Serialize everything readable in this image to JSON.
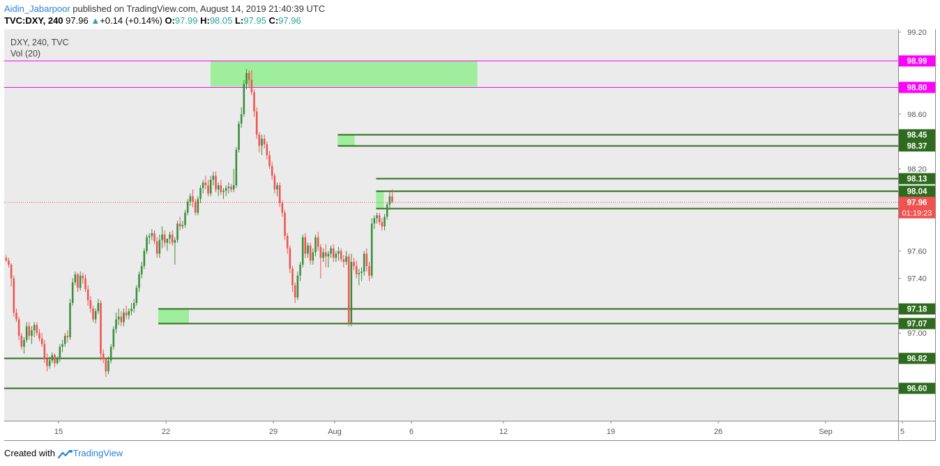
{
  "header": {
    "author": "Aidin_Jabarpoor",
    "published": " published on TradingView.com, August 14, 2019 21:40:39 UTC"
  },
  "ohlc": {
    "symbol": "TVC:DXY, 240",
    "last": "97.96",
    "change": "+0.14 (+0.14%)",
    "o_label": "O:",
    "o": "97.99",
    "h_label": "H:",
    "h": "98.05",
    "l_label": "L:",
    "l": "97.95",
    "c_label": "C:",
    "c": "97.96"
  },
  "legend": {
    "series": "DXY, 240, TVC",
    "vol": "Vol (20)"
  },
  "footer": {
    "created_with": "Created with",
    "brand": "TradingView"
  },
  "colors": {
    "up": "#388e3c",
    "down": "#ef5350",
    "level_line": "#2e6b1e",
    "magenta": "#ff00ff",
    "zone": "#90ee90",
    "plot_bg": "#ebebeb",
    "current": "#ef5350"
  },
  "chart_data": {
    "type": "candlestick",
    "ylim": [
      96.38,
      99.2
    ],
    "y_ticks": [
      "99.20",
      "98.60",
      "98.20",
      "97.60",
      "97.40",
      "97.00",
      "96.60"
    ],
    "x_ticks": [
      "15",
      "22",
      "29",
      "Aug",
      "6",
      "12",
      "19",
      "26",
      "Sep",
      "5"
    ],
    "x_tick_day_index": [
      3,
      10,
      17,
      21,
      26,
      32,
      39,
      46,
      53,
      58
    ],
    "timeframe_minutes": 240,
    "current_price": "97.96",
    "countdown": "01:19:23",
    "magenta_levels": [
      {
        "value": 98.99,
        "label": "98.99"
      },
      {
        "value": 98.8,
        "label": "98.80"
      }
    ],
    "green_levels": [
      {
        "value": 98.45,
        "label": "98.45",
        "start_day": 21.7
      },
      {
        "value": 98.37,
        "label": "98.37",
        "start_day": 21.7
      },
      {
        "value": 98.13,
        "label": "98.13",
        "start_day": 24.2
      },
      {
        "value": 98.04,
        "label": "98.04",
        "start_day": 24.2
      },
      {
        "value": 97.91,
        "label": "97.91",
        "start_day": 24.2
      },
      {
        "value": 97.18,
        "label": "97.18",
        "start_day": 10.0
      },
      {
        "value": 97.07,
        "label": "97.07",
        "start_day": 10.0
      },
      {
        "value": 96.82,
        "label": "96.82",
        "start_day": -1.5
      },
      {
        "value": 96.6,
        "label": "96.60",
        "start_day": -1.5
      }
    ],
    "zones": [
      {
        "x0_day": 13.4,
        "x1_day": 30.8,
        "y_top": 98.99,
        "y_bottom": 98.8
      },
      {
        "x0_day": 21.7,
        "x1_day": 22.8,
        "y_top": 98.45,
        "y_bottom": 98.37
      },
      {
        "x0_day": 24.2,
        "x1_day": 24.7,
        "y_top": 98.04,
        "y_bottom": 97.91
      },
      {
        "x0_day": 10.0,
        "x1_day": 12.0,
        "y_top": 97.18,
        "y_bottom": 97.07
      }
    ],
    "candles": [
      [
        97.55,
        97.57,
        97.52,
        97.53
      ],
      [
        97.53,
        97.55,
        97.48,
        97.5
      ],
      [
        97.5,
        97.51,
        97.34,
        97.4
      ],
      [
        97.4,
        97.42,
        97.12,
        97.15
      ],
      [
        97.15,
        97.18,
        97.08,
        97.1
      ],
      [
        97.1,
        97.12,
        96.95,
        96.98
      ],
      [
        96.98,
        97.0,
        96.88,
        96.9
      ],
      [
        96.9,
        96.97,
        96.85,
        96.95
      ],
      [
        96.95,
        97.08,
        96.93,
        97.05
      ],
      [
        97.05,
        97.08,
        96.95,
        96.98
      ],
      [
        96.98,
        97.05,
        96.92,
        97.02
      ],
      [
        97.02,
        97.08,
        96.97,
        97.06
      ],
      [
        97.06,
        97.08,
        96.98,
        97.0
      ],
      [
        97.0,
        97.03,
        96.94,
        96.96
      ],
      [
        96.96,
        97.0,
        96.9,
        96.92
      ],
      [
        96.92,
        96.95,
        96.78,
        96.81
      ],
      [
        96.81,
        96.85,
        96.72,
        96.76
      ],
      [
        96.76,
        96.83,
        96.74,
        96.8
      ],
      [
        96.8,
        96.86,
        96.78,
        96.84
      ],
      [
        96.84,
        96.85,
        96.75,
        96.78
      ],
      [
        96.78,
        96.83,
        96.77,
        96.81
      ],
      [
        96.81,
        96.92,
        96.79,
        96.9
      ],
      [
        96.9,
        96.95,
        96.86,
        96.92
      ],
      [
        96.92,
        97.0,
        96.9,
        96.98
      ],
      [
        96.98,
        97.02,
        96.93,
        96.97
      ],
      [
        96.97,
        97.25,
        96.95,
        97.22
      ],
      [
        97.22,
        97.4,
        97.2,
        97.37
      ],
      [
        97.37,
        97.45,
        97.35,
        97.43
      ],
      [
        97.43,
        97.44,
        97.3,
        97.33
      ],
      [
        97.33,
        97.45,
        97.31,
        97.42
      ],
      [
        97.42,
        97.44,
        97.36,
        97.4
      ],
      [
        97.4,
        97.43,
        97.3,
        97.32
      ],
      [
        97.32,
        97.35,
        97.2,
        97.24
      ],
      [
        97.24,
        97.27,
        97.15,
        97.18
      ],
      [
        97.18,
        97.2,
        97.08,
        97.1
      ],
      [
        97.1,
        97.18,
        97.07,
        97.16
      ],
      [
        97.16,
        97.25,
        97.14,
        97.22
      ],
      [
        97.22,
        97.24,
        96.8,
        96.85
      ],
      [
        96.85,
        96.88,
        96.78,
        96.81
      ],
      [
        96.81,
        96.82,
        96.68,
        96.72
      ],
      [
        96.72,
        96.83,
        96.7,
        96.8
      ],
      [
        96.8,
        96.92,
        96.78,
        96.9
      ],
      [
        96.9,
        97.05,
        96.88,
        97.03
      ],
      [
        97.03,
        97.15,
        97.0,
        97.1
      ],
      [
        97.1,
        97.18,
        97.06,
        97.12
      ],
      [
        97.12,
        97.16,
        97.05,
        97.08
      ],
      [
        97.08,
        97.18,
        97.05,
        97.15
      ],
      [
        97.15,
        97.2,
        97.1,
        97.13
      ],
      [
        97.13,
        97.18,
        97.1,
        97.16
      ],
      [
        97.16,
        97.22,
        97.13,
        97.18
      ],
      [
        97.18,
        97.25,
        97.15,
        97.22
      ],
      [
        97.22,
        97.35,
        97.2,
        97.33
      ],
      [
        97.33,
        97.45,
        97.3,
        97.43
      ],
      [
        97.43,
        97.52,
        97.4,
        97.49
      ],
      [
        97.49,
        97.62,
        97.47,
        97.6
      ],
      [
        97.6,
        97.72,
        97.58,
        97.7
      ],
      [
        97.7,
        97.73,
        97.65,
        97.71
      ],
      [
        97.71,
        97.76,
        97.68,
        97.73
      ],
      [
        97.73,
        97.75,
        97.65,
        97.67
      ],
      [
        97.67,
        97.7,
        97.55,
        97.58
      ],
      [
        97.58,
        97.72,
        97.55,
        97.68
      ],
      [
        97.68,
        97.78,
        97.62,
        97.72
      ],
      [
        97.72,
        97.75,
        97.63,
        97.66
      ],
      [
        97.66,
        97.68,
        97.6,
        97.69
      ],
      [
        97.69,
        97.74,
        97.65,
        97.72
      ],
      [
        97.72,
        97.75,
        97.64,
        97.66
      ],
      [
        97.66,
        97.7,
        97.5,
        97.68
      ],
      [
        97.68,
        97.82,
        97.66,
        97.8
      ],
      [
        97.8,
        97.85,
        97.75,
        97.78
      ],
      [
        97.78,
        97.82,
        97.76,
        97.79
      ],
      [
        97.79,
        97.9,
        97.77,
        97.88
      ],
      [
        97.88,
        97.98,
        97.86,
        97.96
      ],
      [
        97.96,
        98.02,
        97.93,
        98.0
      ],
      [
        98.0,
        98.05,
        97.92,
        97.96
      ],
      [
        97.96,
        97.98,
        97.86,
        97.88
      ],
      [
        97.88,
        98.0,
        97.86,
        97.98
      ],
      [
        97.98,
        98.08,
        97.95,
        98.06
      ],
      [
        98.06,
        98.12,
        98.02,
        98.1
      ],
      [
        98.1,
        98.15,
        98.05,
        98.08
      ],
      [
        98.08,
        98.12,
        98.0,
        98.02
      ],
      [
        98.02,
        98.15,
        98.0,
        98.12
      ],
      [
        98.12,
        98.18,
        98.08,
        98.15
      ],
      [
        98.15,
        98.18,
        98.03,
        98.05
      ],
      [
        98.05,
        98.1,
        98.0,
        98.08
      ],
      [
        98.08,
        98.12,
        98.01,
        98.03
      ],
      [
        98.03,
        98.06,
        97.98,
        98.04
      ],
      [
        98.04,
        98.08,
        98.0,
        98.06
      ],
      [
        98.06,
        98.1,
        98.02,
        98.07
      ],
      [
        98.07,
        98.09,
        98.03,
        98.05
      ],
      [
        98.05,
        98.2,
        98.03,
        98.08
      ],
      [
        98.08,
        98.36,
        98.06,
        98.34
      ],
      [
        98.34,
        98.55,
        98.32,
        98.53
      ],
      [
        98.53,
        98.65,
        98.5,
        98.6
      ],
      [
        98.6,
        98.85,
        98.58,
        98.82
      ],
      [
        98.82,
        98.93,
        98.78,
        98.9
      ],
      [
        98.9,
        98.92,
        98.8,
        98.85
      ],
      [
        98.85,
        98.92,
        98.74,
        98.76
      ],
      [
        98.76,
        98.78,
        98.58,
        98.62
      ],
      [
        98.62,
        98.65,
        98.42,
        98.45
      ],
      [
        98.45,
        98.47,
        98.32,
        98.37
      ],
      [
        98.37,
        98.45,
        98.3,
        98.42
      ],
      [
        98.42,
        98.45,
        98.35,
        98.38
      ],
      [
        98.38,
        98.4,
        98.27,
        98.3
      ],
      [
        98.3,
        98.33,
        98.2,
        98.22
      ],
      [
        98.22,
        98.25,
        98.12,
        98.15
      ],
      [
        98.15,
        98.17,
        98.02,
        98.05
      ],
      [
        98.05,
        98.1,
        98.0,
        98.08
      ],
      [
        98.08,
        98.1,
        97.92,
        97.95
      ],
      [
        97.95,
        97.97,
        97.85,
        97.88
      ],
      [
        97.88,
        97.9,
        97.68,
        97.71
      ],
      [
        97.71,
        97.73,
        97.58,
        97.62
      ],
      [
        97.62,
        97.64,
        97.44,
        97.47
      ],
      [
        97.47,
        97.49,
        97.3,
        97.35
      ],
      [
        97.35,
        97.37,
        97.22,
        97.26
      ],
      [
        97.26,
        97.45,
        97.24,
        97.42
      ],
      [
        97.42,
        97.52,
        97.38,
        97.5
      ],
      [
        97.5,
        97.72,
        97.48,
        97.7
      ],
      [
        97.7,
        97.73,
        97.55,
        97.58
      ],
      [
        97.58,
        97.66,
        97.55,
        97.64
      ],
      [
        97.64,
        97.66,
        97.5,
        97.53
      ],
      [
        97.53,
        97.62,
        97.5,
        97.59
      ],
      [
        97.59,
        97.72,
        97.56,
        97.7
      ],
      [
        97.7,
        97.74,
        97.6,
        97.63
      ],
      [
        97.63,
        97.65,
        97.4,
        97.55
      ],
      [
        97.55,
        97.62,
        97.52,
        97.59
      ],
      [
        97.59,
        97.65,
        97.48,
        97.56
      ],
      [
        97.56,
        97.6,
        97.48,
        97.58
      ],
      [
        97.58,
        97.64,
        97.55,
        97.62
      ],
      [
        97.62,
        97.65,
        97.52,
        97.55
      ],
      [
        97.55,
        97.6,
        97.52,
        97.58
      ],
      [
        97.58,
        97.63,
        97.53,
        97.6
      ],
      [
        97.6,
        97.62,
        97.52,
        97.54
      ],
      [
        97.54,
        97.57,
        97.48,
        97.52
      ],
      [
        97.52,
        97.6,
        97.5,
        97.56
      ],
      [
        97.56,
        97.58,
        97.05,
        97.07
      ],
      [
        97.07,
        97.58,
        97.05,
        97.52
      ],
      [
        97.52,
        97.55,
        97.46,
        97.49
      ],
      [
        97.49,
        97.53,
        97.4,
        97.43
      ],
      [
        97.43,
        97.47,
        97.35,
        97.44
      ],
      [
        97.44,
        97.48,
        97.38,
        97.45
      ],
      [
        97.45,
        97.6,
        97.42,
        97.58
      ],
      [
        97.58,
        97.62,
        97.45,
        97.49
      ],
      [
        97.49,
        97.52,
        97.38,
        97.42
      ],
      [
        97.42,
        97.84,
        97.4,
        97.8
      ],
      [
        97.8,
        97.86,
        97.76,
        97.84
      ],
      [
        97.84,
        97.88,
        97.8,
        97.86
      ],
      [
        97.86,
        97.88,
        97.79,
        97.81
      ],
      [
        97.81,
        97.84,
        97.75,
        97.78
      ],
      [
        97.78,
        97.87,
        97.75,
        97.85
      ],
      [
        97.85,
        97.96,
        97.83,
        97.94
      ],
      [
        97.94,
        98.03,
        97.9,
        98.0
      ],
      [
        98.0,
        98.05,
        97.95,
        97.96
      ]
    ]
  }
}
